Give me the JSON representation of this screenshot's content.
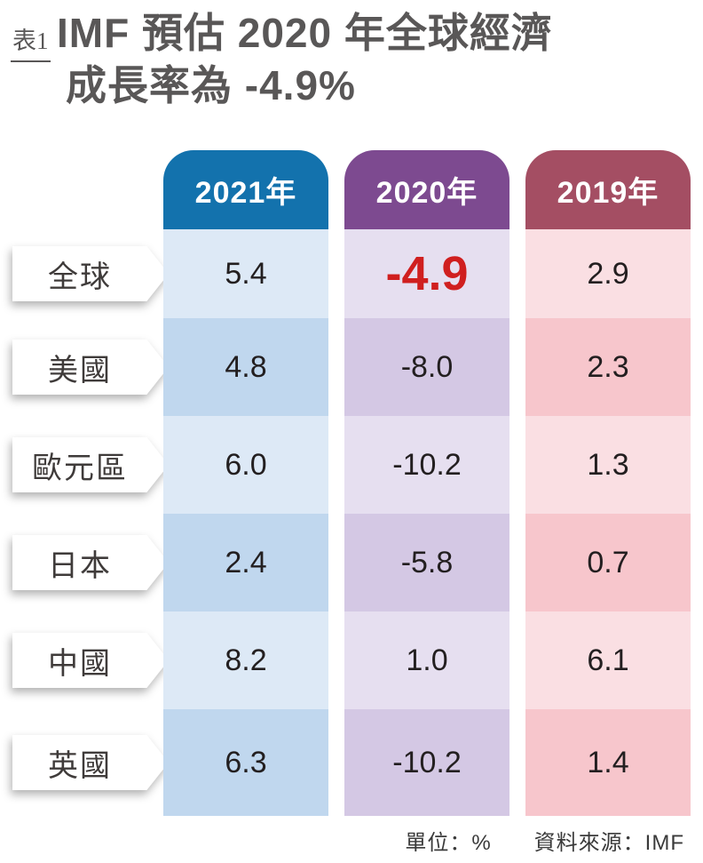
{
  "title": {
    "tag": "表1",
    "line1": "IMF 預估 2020 年全球經濟",
    "line2": "成長率為 -4.9%"
  },
  "table": {
    "columns": [
      {
        "label": "2021年",
        "header_color": "#1372ad",
        "cell_light": "#dde9f6",
        "cell_dark": "#c0d7ee"
      },
      {
        "label": "2020年",
        "header_color": "#7d4a90",
        "cell_light": "#e6dff0",
        "cell_dark": "#d4c8e4"
      },
      {
        "label": "2019年",
        "header_color": "#a44e63",
        "cell_light": "#fadfe3",
        "cell_dark": "#f7c6cc"
      }
    ],
    "rows": [
      {
        "label": "全球",
        "values": [
          "5.4",
          "-4.9",
          "2.9"
        ]
      },
      {
        "label": "美國",
        "values": [
          "4.8",
          "-8.0",
          "2.3"
        ]
      },
      {
        "label": "歐元區",
        "values": [
          "6.0",
          "-10.2",
          "1.3"
        ]
      },
      {
        "label": "日本",
        "values": [
          "2.4",
          "-5.8",
          "0.7"
        ]
      },
      {
        "label": "中國",
        "values": [
          "8.2",
          "1.0",
          "6.1"
        ]
      },
      {
        "label": "英國",
        "values": [
          "6.3",
          "-10.2",
          "1.4"
        ]
      }
    ],
    "highlight": {
      "row": 0,
      "col": 1,
      "color": "#d01f1f"
    }
  },
  "footer": {
    "unit": "單位：%",
    "source": "資料來源：IMF"
  },
  "colors": {
    "title_gray": "#595757",
    "highlight_red": "#d01f1f"
  },
  "chart_data": {
    "type": "table",
    "title": "IMF預估2020年全球經濟成長率為-4.9%",
    "categories": [
      "全球",
      "美國",
      "歐元區",
      "日本",
      "中國",
      "英國"
    ],
    "series": [
      {
        "name": "2021年",
        "values": [
          5.4,
          4.8,
          6.0,
          2.4,
          8.2,
          6.3
        ]
      },
      {
        "name": "2020年",
        "values": [
          -4.9,
          -8.0,
          -10.2,
          -5.8,
          1.0,
          -10.2
        ]
      },
      {
        "name": "2019年",
        "values": [
          2.9,
          2.3,
          1.3,
          0.7,
          6.1,
          1.4
        ]
      }
    ],
    "unit": "%",
    "source": "IMF",
    "highlighted_value": {
      "category": "全球",
      "series": "2020年",
      "value": -4.9
    }
  }
}
